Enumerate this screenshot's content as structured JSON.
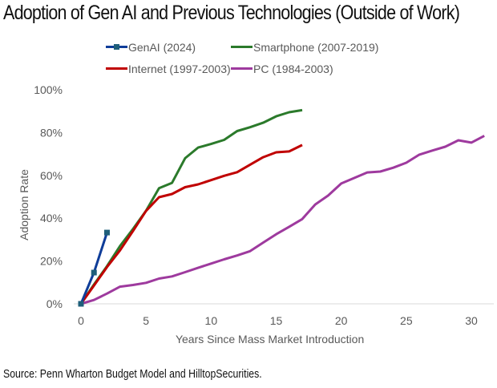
{
  "title": "Adoption of Gen AI and Previous Technologies (Outside of Work)",
  "footer": "Source: Penn Wharton Budget Model and HilltopSecurities.",
  "chart_data": {
    "type": "line",
    "title": "Adoption of Gen AI and Previous Technologies (Outside of Work)",
    "xlabel": "Years Since Mass Market Introduction",
    "ylabel": "Adoption Rate",
    "xlim": [
      0,
      31
    ],
    "ylim": [
      0,
      100
    ],
    "x_ticks": [
      0,
      5,
      10,
      15,
      20,
      25,
      30
    ],
    "x_tick_labels": [
      "0",
      "5",
      "10",
      "15",
      "20",
      "25",
      "30"
    ],
    "y_ticks": [
      0,
      20,
      40,
      60,
      80,
      100
    ],
    "y_tick_labels": [
      "0%",
      "20%",
      "40%",
      "60%",
      "80%",
      "100%"
    ],
    "grid": false,
    "legend_position": "top",
    "series": [
      {
        "name": "GenAI (2024)",
        "color": "#0f3d99",
        "marker_color": "#1f5f7a",
        "marker": "square",
        "x": [
          0,
          1,
          2
        ],
        "y": [
          0,
          14.6,
          33.3
        ]
      },
      {
        "name": "Smartphone (2007-2019)",
        "color": "#2b7a2b",
        "marker": "none",
        "x": [
          0,
          1,
          2,
          3,
          4,
          5,
          6,
          7,
          8,
          9,
          10,
          11,
          12,
          13,
          14,
          15,
          16,
          17
        ],
        "y": [
          0,
          9,
          17.6,
          27,
          35,
          43.5,
          54,
          56.5,
          68,
          73,
          74.7,
          76.6,
          80.7,
          82.5,
          84.6,
          87.6,
          89.5,
          90.5
        ]
      },
      {
        "name": "Internet (1997-2003)",
        "color": "#c00000",
        "marker": "none",
        "x": [
          0,
          1,
          2,
          3,
          4,
          5,
          6,
          7,
          8,
          9,
          10,
          11,
          12,
          13,
          14,
          15,
          16,
          17
        ],
        "y": [
          0,
          8.5,
          17.2,
          25,
          34,
          43.4,
          49.8,
          51.3,
          54.5,
          55.8,
          57.8,
          59.8,
          61.5,
          65,
          68.5,
          70.8,
          71.2,
          74.2
        ]
      },
      {
        "name": "PC (1984-2003)",
        "color": "#9e3a9e",
        "marker": "none",
        "x": [
          0,
          1,
          2,
          3,
          4,
          5,
          6,
          7,
          8,
          9,
          10,
          11,
          12,
          13,
          14,
          15,
          16,
          17,
          18,
          19,
          20,
          21,
          22,
          23,
          24,
          25,
          26,
          27,
          28,
          29,
          30,
          31
        ],
        "y": [
          0,
          1.8,
          4.8,
          8,
          8.8,
          9.8,
          11.8,
          12.8,
          14.8,
          16.8,
          18.8,
          20.8,
          22.6,
          24.6,
          28.6,
          32.5,
          36,
          39.6,
          46.4,
          50.6,
          56.2,
          58.8,
          61.4,
          61.8,
          63.6,
          65.9,
          69.7,
          71.6,
          73.4,
          76.4,
          75.3,
          78.5
        ]
      }
    ],
    "draw_order": [
      3,
      1,
      2,
      0
    ]
  }
}
